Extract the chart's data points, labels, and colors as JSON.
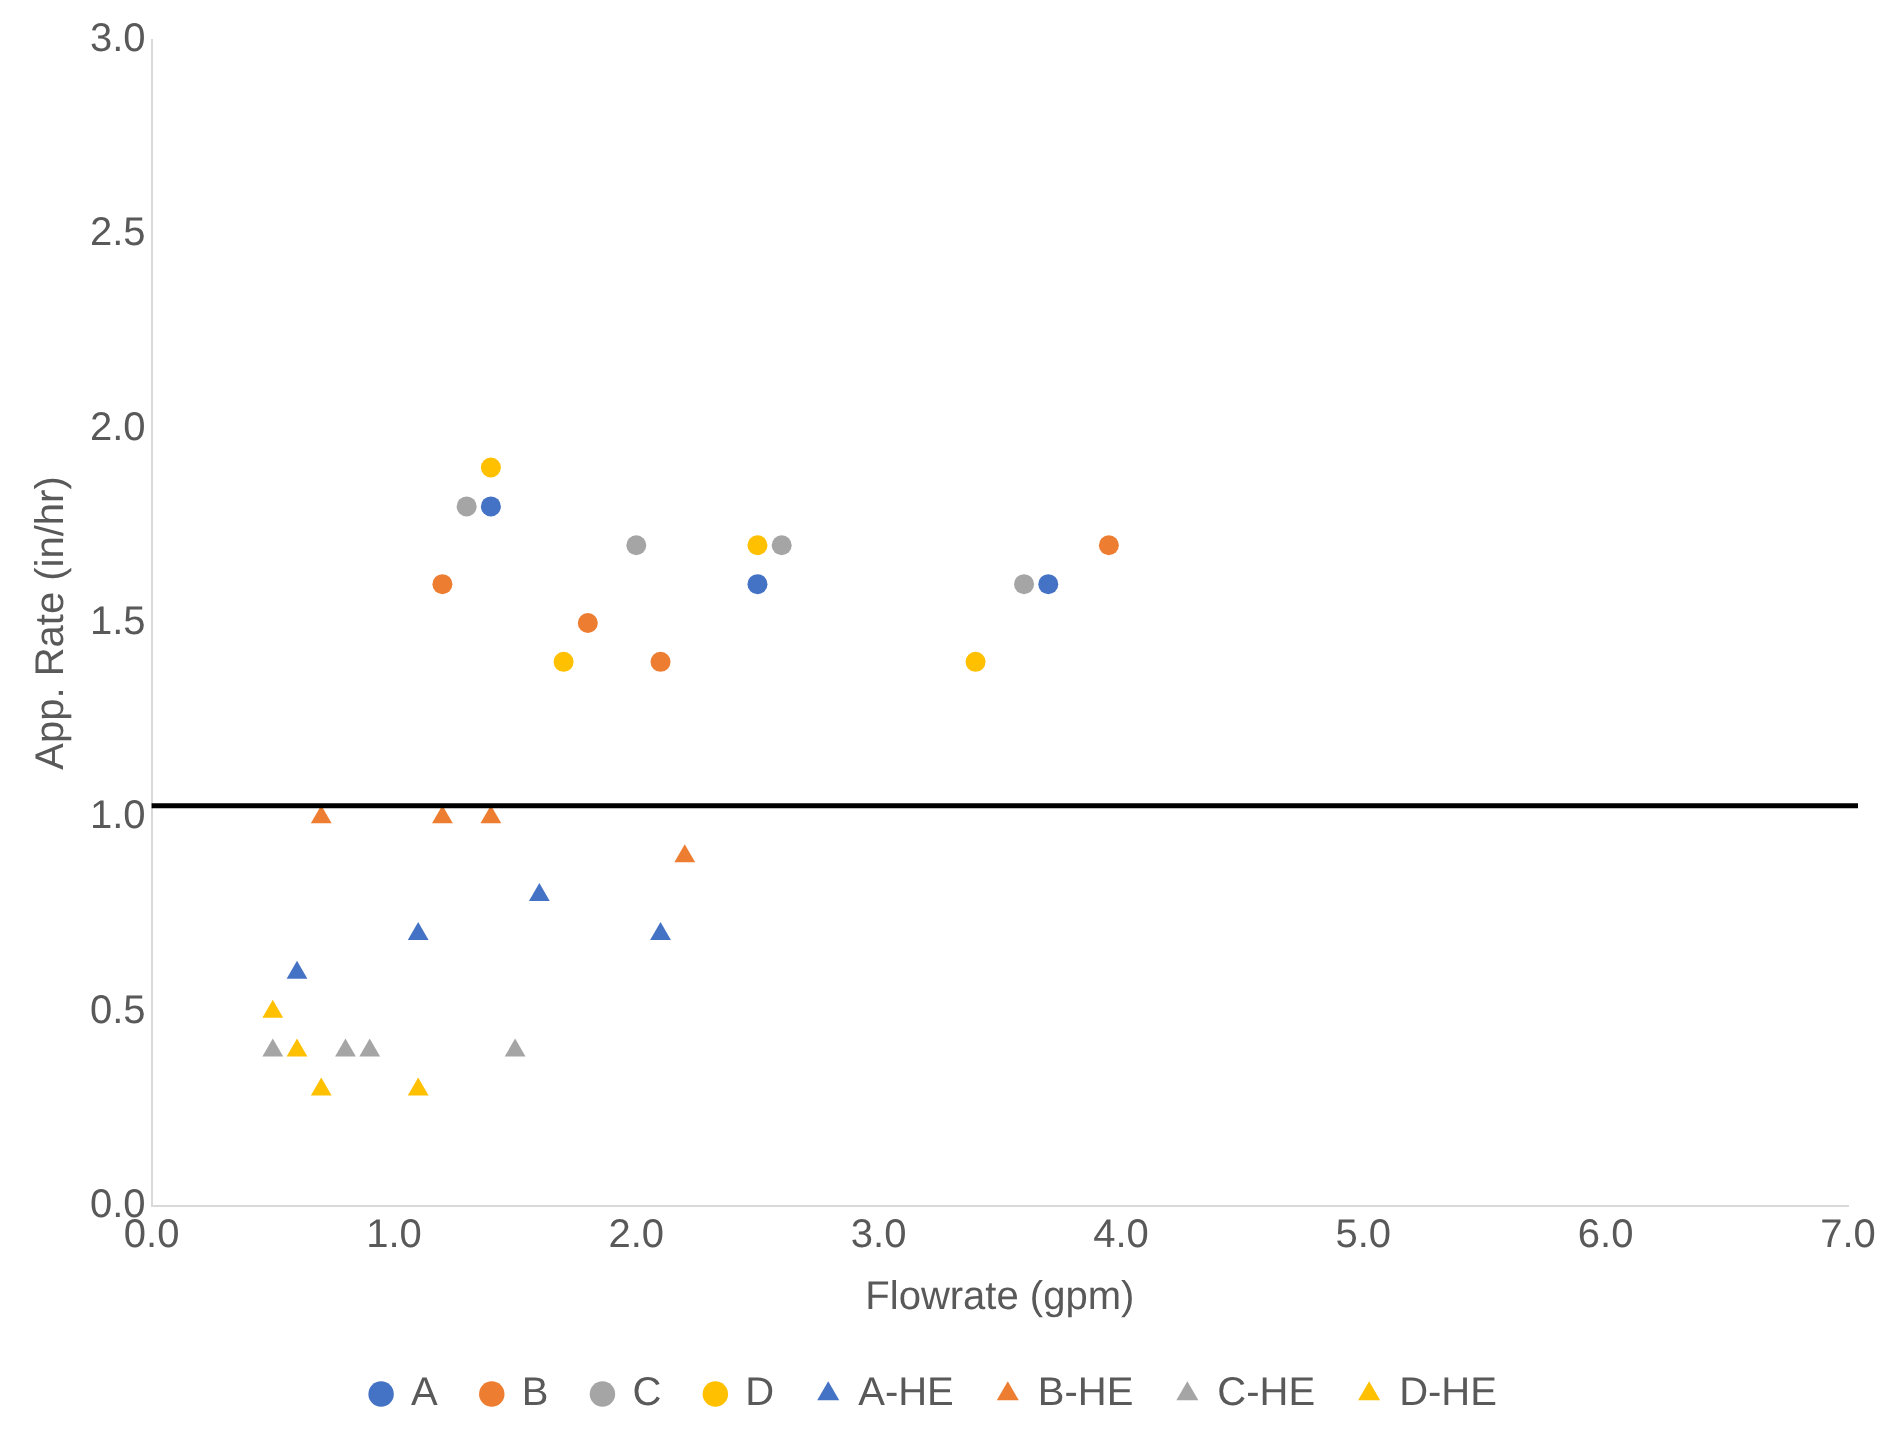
{
  "chart_data": {
    "type": "scatter",
    "xlabel": "Flowrate (gpm)",
    "ylabel": "App. Rate (in/hr)",
    "xlim": [
      0,
      7
    ],
    "xticks": [
      {
        "value": 0,
        "label": "0.0"
      },
      {
        "value": 1,
        "label": "1.0"
      },
      {
        "value": 2,
        "label": "2.0"
      },
      {
        "value": 3,
        "label": "3.0"
      },
      {
        "value": 4,
        "label": "4.0"
      },
      {
        "value": 5,
        "label": "5.0"
      },
      {
        "value": 6,
        "label": "6.0"
      },
      {
        "value": 7,
        "label": "7.0"
      }
    ],
    "ylim": [
      0,
      3
    ],
    "yticks": [
      {
        "value": 0,
        "label": "0.0"
      },
      {
        "value": 0.5,
        "label": "0.5"
      },
      {
        "value": 1,
        "label": "1.0"
      },
      {
        "value": 1.5,
        "label": "1.5"
      },
      {
        "value": 2,
        "label": "2.0"
      },
      {
        "value": 2.5,
        "label": "2.5"
      },
      {
        "value": 3,
        "label": "3.0"
      }
    ],
    "grid": false,
    "legend": "bottom",
    "ref_lines": [
      {
        "axis": "y",
        "value": 1.03,
        "color": "#000000"
      }
    ],
    "series": [
      {
        "name": "A",
        "color": "#4472c4",
        "marker": "circle",
        "x": [
          1.4,
          2.5,
          3.7
        ],
        "values": [
          1.8,
          1.6,
          1.6
        ]
      },
      {
        "name": "B",
        "color": "#ed7d31",
        "marker": "circle",
        "x": [
          1.2,
          1.8,
          2.1,
          3.95
        ],
        "values": [
          1.6,
          1.5,
          1.4,
          1.7
        ]
      },
      {
        "name": "C",
        "color": "#a5a5a5",
        "marker": "circle",
        "x": [
          1.3,
          2.0,
          2.6,
          3.6
        ],
        "values": [
          1.8,
          1.7,
          1.7,
          1.6
        ]
      },
      {
        "name": "D",
        "color": "#ffc000",
        "marker": "circle",
        "x": [
          1.4,
          1.7,
          2.5,
          3.4
        ],
        "values": [
          1.9,
          1.4,
          1.7,
          1.4
        ]
      },
      {
        "name": "A-HE",
        "color": "#4472c4",
        "marker": "triangle",
        "x": [
          0.6,
          1.1,
          1.6,
          2.1
        ],
        "values": [
          0.6,
          0.7,
          0.8,
          0.7
        ]
      },
      {
        "name": "B-HE",
        "color": "#ed7d31",
        "marker": "triangle",
        "x": [
          0.7,
          1.2,
          1.4,
          2.2
        ],
        "values": [
          1.0,
          1.0,
          1.0,
          0.9
        ]
      },
      {
        "name": "C-HE",
        "color": "#a5a5a5",
        "marker": "triangle",
        "x": [
          0.5,
          0.8,
          0.9,
          1.5
        ],
        "values": [
          0.4,
          0.4,
          0.4,
          0.4
        ]
      },
      {
        "name": "D-HE",
        "color": "#ffc000",
        "marker": "triangle",
        "x": [
          0.5,
          0.6,
          0.7,
          1.1
        ],
        "values": [
          0.5,
          0.4,
          0.3,
          0.3
        ]
      }
    ]
  }
}
